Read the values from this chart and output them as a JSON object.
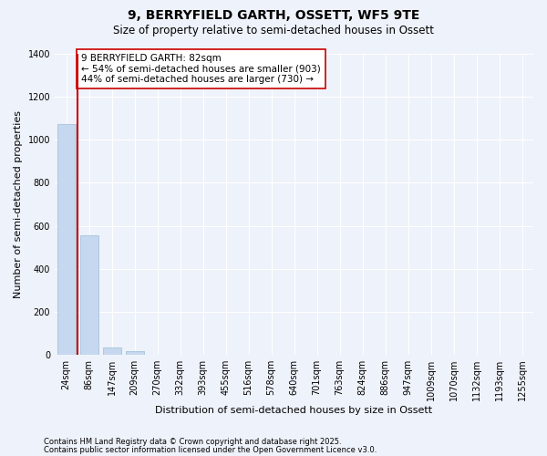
{
  "title1": "9, BERRYFIELD GARTH, OSSETT, WF5 9TE",
  "title2": "Size of property relative to semi-detached houses in Ossett",
  "xlabel": "Distribution of semi-detached houses by size in Ossett",
  "ylabel": "Number of semi-detached properties",
  "categories": [
    "24sqm",
    "86sqm",
    "147sqm",
    "209sqm",
    "270sqm",
    "332sqm",
    "393sqm",
    "455sqm",
    "516sqm",
    "578sqm",
    "640sqm",
    "701sqm",
    "763sqm",
    "824sqm",
    "886sqm",
    "947sqm",
    "1009sqm",
    "1070sqm",
    "1132sqm",
    "1193sqm",
    "1255sqm"
  ],
  "values": [
    1075,
    555,
    35,
    15,
    0,
    0,
    0,
    0,
    0,
    0,
    0,
    0,
    0,
    0,
    0,
    0,
    0,
    0,
    0,
    0,
    0
  ],
  "bar_color": "#c5d8f0",
  "bar_edge_color": "#9bbcd8",
  "vline_x": 0.5,
  "vline_color": "#cc0000",
  "annotation_text": "9 BERRYFIELD GARTH: 82sqm\n← 54% of semi-detached houses are smaller (903)\n44% of semi-detached houses are larger (730) →",
  "annotation_box_color": "#cc0000",
  "ylim": [
    0,
    1400
  ],
  "yticks": [
    0,
    200,
    400,
    600,
    800,
    1000,
    1200,
    1400
  ],
  "footer1": "Contains HM Land Registry data © Crown copyright and database right 2025.",
  "footer2": "Contains public sector information licensed under the Open Government Licence v3.0.",
  "bg_color": "#eef2fa",
  "plot_bg_color": "#eef2fa",
  "grid_color": "#ffffff",
  "title1_fontsize": 10,
  "title2_fontsize": 8.5,
  "tick_fontsize": 7,
  "ylabel_fontsize": 8,
  "xlabel_fontsize": 8,
  "ann_fontsize": 7.5,
  "footer_fontsize": 6
}
